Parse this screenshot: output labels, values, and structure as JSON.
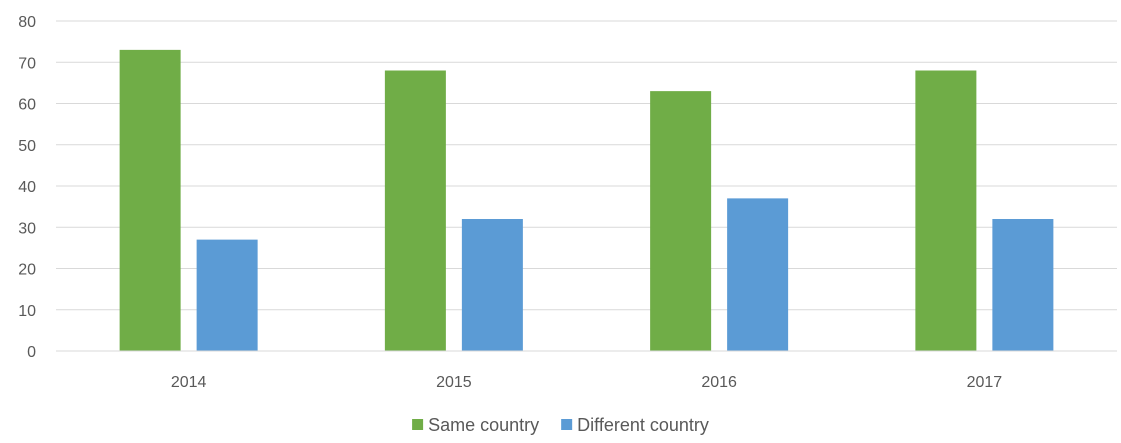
{
  "chart_data": {
    "type": "bar",
    "categories": [
      "2014",
      "2015",
      "2016",
      "2017"
    ],
    "series": [
      {
        "name": "Same country",
        "values": [
          73,
          68,
          63,
          68
        ],
        "color": "#70ad47"
      },
      {
        "name": "Different country",
        "values": [
          27,
          32,
          37,
          32
        ],
        "color": "#5b9bd5"
      }
    ],
    "ylim": [
      0,
      80
    ],
    "yticks": [
      0,
      10,
      20,
      30,
      40,
      50,
      60,
      70,
      80
    ],
    "grid": true,
    "legend_position": "bottom",
    "title": "",
    "xlabel": "",
    "ylabel": ""
  }
}
